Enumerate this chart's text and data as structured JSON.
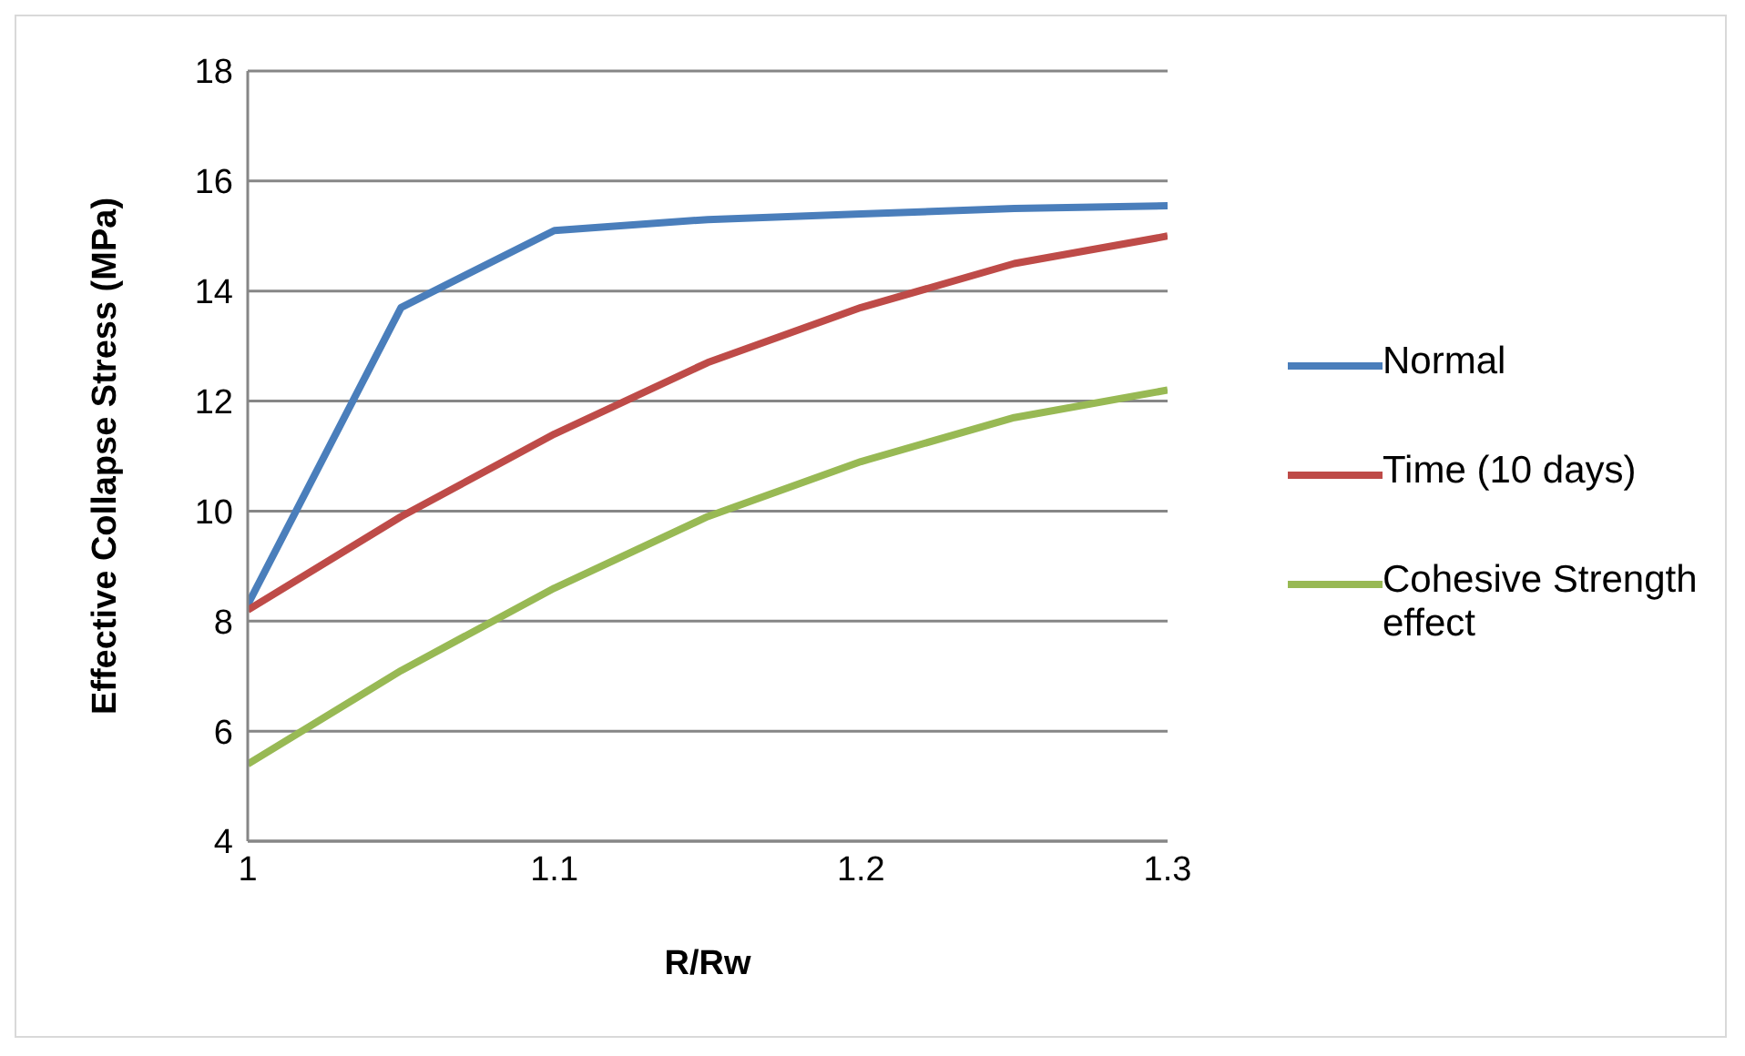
{
  "chart_data": {
    "type": "line",
    "xlabel": "R/Rw",
    "ylabel": "Effective Collapse Stress (MPa)",
    "x": [
      1,
      1.05,
      1.1,
      1.15,
      1.2,
      1.25,
      1.3
    ],
    "series": [
      {
        "name": "Normal",
        "color": "#4a7ebb",
        "values": [
          8.3,
          13.7,
          15.1,
          15.3,
          15.4,
          15.5,
          15.55
        ]
      },
      {
        "name": "Time (10 days)",
        "color": "#be4b48",
        "values": [
          8.2,
          9.9,
          11.4,
          12.7,
          13.7,
          14.5,
          15.0
        ]
      },
      {
        "name": "Cohesive Strength effect",
        "color": "#98b954",
        "values": [
          5.4,
          7.1,
          8.6,
          9.9,
          10.9,
          11.7,
          12.2
        ]
      }
    ],
    "xlim": [
      1,
      1.3
    ],
    "xticks": [
      1,
      1.1,
      1.2,
      1.3
    ],
    "ylim": [
      4,
      18
    ],
    "yticks": [
      4,
      6,
      8,
      10,
      12,
      14,
      16,
      18
    ],
    "grid": "y",
    "legend": "right",
    "marker": "none",
    "line_style": "solid"
  }
}
